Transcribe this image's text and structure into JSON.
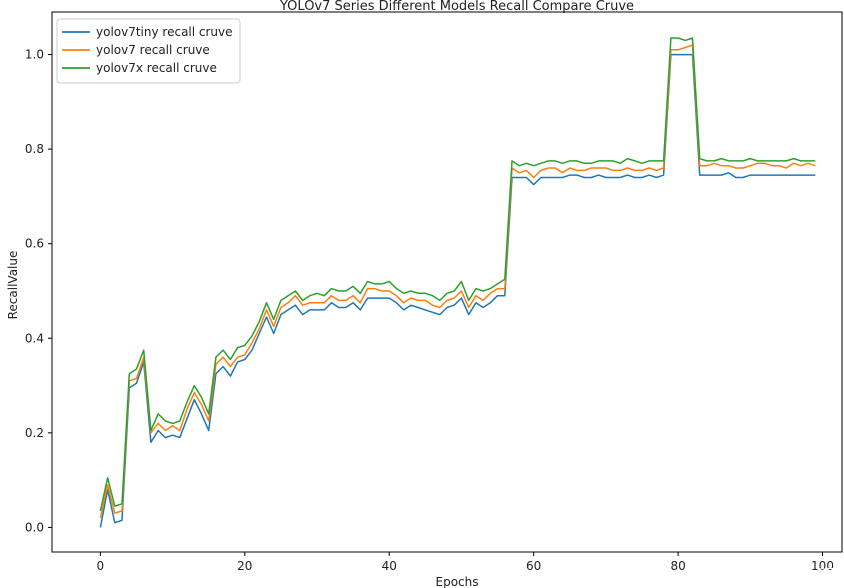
{
  "chart_data": {
    "type": "line",
    "title": "YOLOv7 Series Different Models Recall Compare Cruve",
    "xlabel": "Epochs",
    "ylabel": "RecallValue",
    "xlim": [
      -6.7,
      102.7
    ],
    "ylim": [
      -0.052,
      1.09
    ],
    "xticks": [
      0,
      20,
      40,
      60,
      80,
      100
    ],
    "yticks": [
      0.0,
      0.2,
      0.4,
      0.6,
      0.8,
      1.0
    ],
    "ytick_labels": [
      "0.0",
      "0.2",
      "0.4",
      "0.6",
      "0.8",
      "1.0"
    ],
    "legend_position": "top-left",
    "grid": false,
    "x": [
      0,
      1,
      2,
      3,
      4,
      5,
      6,
      7,
      8,
      9,
      10,
      11,
      12,
      13,
      14,
      15,
      16,
      17,
      18,
      19,
      20,
      21,
      22,
      23,
      24,
      25,
      26,
      27,
      28,
      29,
      30,
      31,
      32,
      33,
      34,
      35,
      36,
      37,
      38,
      39,
      40,
      41,
      42,
      43,
      44,
      45,
      46,
      47,
      48,
      49,
      50,
      51,
      52,
      53,
      54,
      55,
      56,
      57,
      58,
      59,
      60,
      61,
      62,
      63,
      64,
      65,
      66,
      67,
      68,
      69,
      70,
      71,
      72,
      73,
      74,
      75,
      76,
      77,
      78,
      79,
      80,
      81,
      82,
      83,
      84,
      85,
      86,
      87,
      88,
      89,
      90,
      91,
      92,
      93,
      94,
      95,
      96,
      97,
      98,
      99
    ],
    "series": [
      {
        "name": "yolov7tiny recall cruve",
        "color": "#1f77b4",
        "values": [
          0.0,
          0.08,
          0.01,
          0.015,
          0.295,
          0.305,
          0.35,
          0.18,
          0.205,
          0.19,
          0.195,
          0.19,
          0.23,
          0.27,
          0.24,
          0.205,
          0.325,
          0.34,
          0.32,
          0.35,
          0.355,
          0.375,
          0.41,
          0.445,
          0.41,
          0.45,
          0.46,
          0.47,
          0.45,
          0.46,
          0.46,
          0.46,
          0.475,
          0.465,
          0.465,
          0.475,
          0.46,
          0.485,
          0.485,
          0.485,
          0.485,
          0.475,
          0.46,
          0.47,
          0.465,
          0.46,
          0.455,
          0.45,
          0.465,
          0.47,
          0.485,
          0.45,
          0.475,
          0.465,
          0.475,
          0.49,
          0.49,
          0.74,
          0.74,
          0.74,
          0.725,
          0.74,
          0.74,
          0.74,
          0.74,
          0.745,
          0.745,
          0.74,
          0.74,
          0.745,
          0.74,
          0.74,
          0.74,
          0.745,
          0.74,
          0.74,
          0.745,
          0.74,
          0.745,
          1.0,
          1.0,
          1.0,
          1.0,
          0.745,
          0.745,
          0.745,
          0.745,
          0.75,
          0.74,
          0.74,
          0.745,
          0.745,
          0.745,
          0.745,
          0.745,
          0.745,
          0.745,
          0.745,
          0.745,
          0.745
        ]
      },
      {
        "name": "yolov7 recall cruve",
        "color": "#ff7f0e",
        "values": [
          0.02,
          0.09,
          0.03,
          0.035,
          0.31,
          0.315,
          0.36,
          0.2,
          0.22,
          0.205,
          0.215,
          0.205,
          0.25,
          0.285,
          0.26,
          0.225,
          0.345,
          0.36,
          0.34,
          0.36,
          0.365,
          0.39,
          0.42,
          0.46,
          0.425,
          0.465,
          0.475,
          0.49,
          0.47,
          0.475,
          0.475,
          0.475,
          0.49,
          0.48,
          0.48,
          0.49,
          0.475,
          0.505,
          0.505,
          0.5,
          0.5,
          0.49,
          0.475,
          0.485,
          0.48,
          0.48,
          0.47,
          0.465,
          0.48,
          0.485,
          0.5,
          0.465,
          0.49,
          0.48,
          0.495,
          0.505,
          0.505,
          0.76,
          0.75,
          0.755,
          0.74,
          0.755,
          0.76,
          0.76,
          0.75,
          0.76,
          0.755,
          0.755,
          0.76,
          0.76,
          0.76,
          0.755,
          0.755,
          0.76,
          0.755,
          0.755,
          0.76,
          0.755,
          0.76,
          1.01,
          1.01,
          1.015,
          1.02,
          0.765,
          0.765,
          0.77,
          0.765,
          0.765,
          0.76,
          0.76,
          0.765,
          0.77,
          0.77,
          0.765,
          0.765,
          0.76,
          0.77,
          0.765,
          0.77,
          0.765
        ]
      },
      {
        "name": "yolov7x recall cruve",
        "color": "#2ca02c",
        "values": [
          0.035,
          0.105,
          0.045,
          0.05,
          0.325,
          0.335,
          0.375,
          0.205,
          0.24,
          0.225,
          0.22,
          0.225,
          0.265,
          0.3,
          0.275,
          0.24,
          0.36,
          0.375,
          0.355,
          0.38,
          0.385,
          0.405,
          0.435,
          0.475,
          0.44,
          0.48,
          0.49,
          0.5,
          0.48,
          0.49,
          0.495,
          0.49,
          0.505,
          0.5,
          0.5,
          0.51,
          0.495,
          0.52,
          0.515,
          0.515,
          0.52,
          0.505,
          0.495,
          0.5,
          0.495,
          0.495,
          0.49,
          0.48,
          0.495,
          0.5,
          0.52,
          0.48,
          0.505,
          0.5,
          0.505,
          0.515,
          0.525,
          0.775,
          0.765,
          0.77,
          0.765,
          0.77,
          0.775,
          0.775,
          0.77,
          0.775,
          0.775,
          0.77,
          0.77,
          0.775,
          0.775,
          0.775,
          0.77,
          0.78,
          0.775,
          0.77,
          0.775,
          0.775,
          0.775,
          1.035,
          1.035,
          1.03,
          1.035,
          0.78,
          0.775,
          0.775,
          0.78,
          0.775,
          0.775,
          0.775,
          0.78,
          0.775,
          0.775,
          0.775,
          0.775,
          0.775,
          0.78,
          0.775,
          0.775,
          0.775
        ]
      }
    ]
  },
  "watermark": "CSDN @Together_CZ"
}
